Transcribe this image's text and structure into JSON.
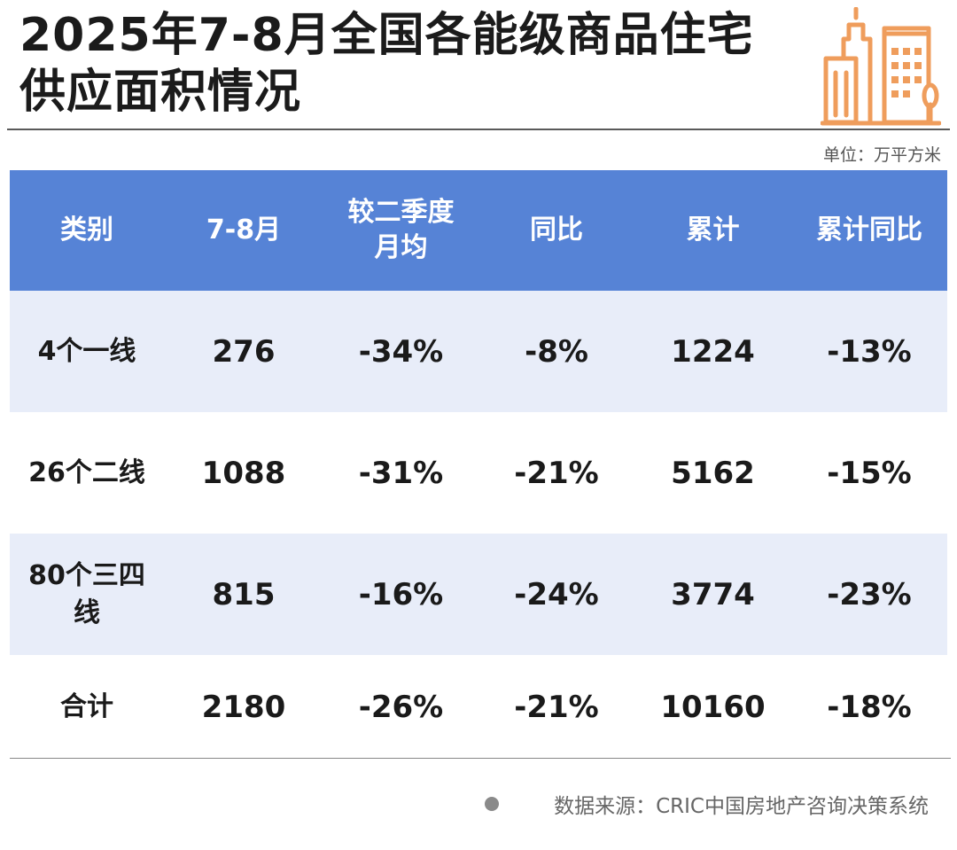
{
  "title": "2025年7-8月全国各能级商品住宅供应面积情况",
  "unit": "单位：万平方米",
  "source": "数据来源：CRIC中国房地产咨询决策系统",
  "colors": {
    "header_bg": "#5683d6",
    "row_shade": "#e8edf9",
    "logo_orange": "#ef9d5c"
  },
  "icons": [
    "city-buildings-icon",
    "bullet-dot-icon"
  ],
  "chart_data": {
    "type": "table",
    "columns": [
      "类别",
      "7-8月",
      "较二季度月均",
      "同比",
      "累计",
      "累计同比"
    ],
    "rows": [
      [
        "4个一线",
        "276",
        "-34%",
        "-8%",
        "1224",
        "-13%"
      ],
      [
        "26个二线",
        "1088",
        "-31%",
        "-21%",
        "5162",
        "-15%"
      ],
      [
        "80个三四线",
        "815",
        "-16%",
        "-24%",
        "3774",
        "-23%"
      ],
      [
        "合计",
        "2180",
        "-26%",
        "-21%",
        "10160",
        "-18%"
      ]
    ]
  }
}
